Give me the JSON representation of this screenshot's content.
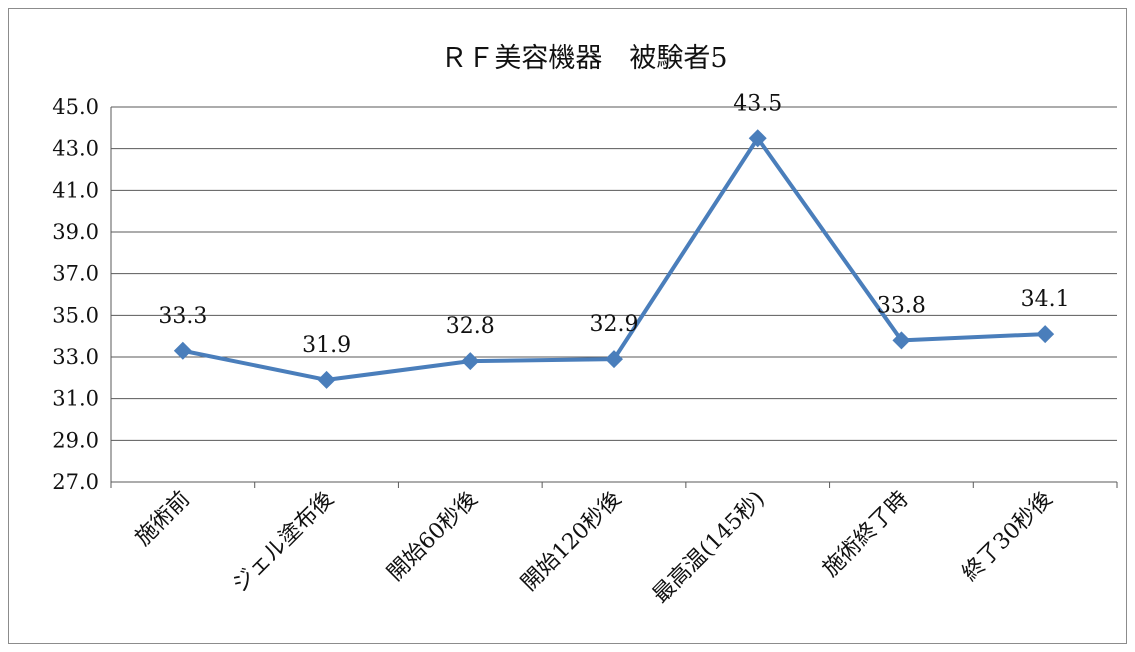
{
  "chart_data": {
    "type": "line",
    "title": "ＲＦ美容機器　被験者5",
    "categories": [
      "施術前",
      "ジェル塗布後",
      "開始60秒後",
      "開始120秒後",
      "最高温(145秒)",
      "施術終了時",
      "終了30秒後"
    ],
    "series": [
      {
        "values": [
          33.3,
          31.9,
          32.8,
          32.9,
          43.5,
          33.8,
          34.1
        ],
        "color": "#4a7ebb"
      }
    ],
    "data_labels": [
      "33.3",
      "31.9",
      "32.8",
      "32.9",
      "43.5",
      "33.8",
      "34.1"
    ],
    "ylim": [
      27.0,
      45.0
    ],
    "yticks": [
      "27.0",
      "29.0",
      "31.0",
      "33.0",
      "35.0",
      "37.0",
      "39.0",
      "41.0",
      "43.0",
      "45.0"
    ],
    "grid": true,
    "legend": "none",
    "marker": "diamond"
  }
}
